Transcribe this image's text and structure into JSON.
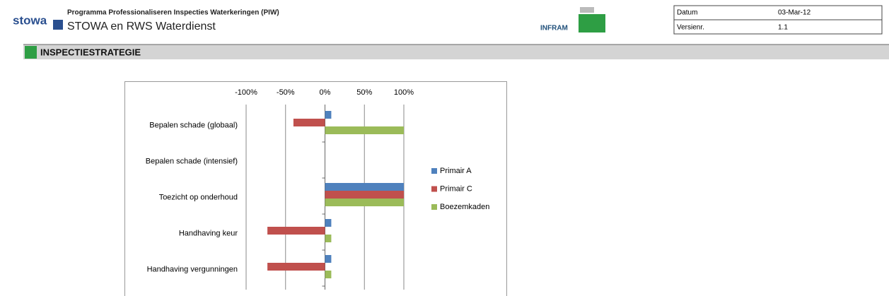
{
  "header": {
    "logo_text": "stowa",
    "program": "Programma Professionaliseren Inspecties Waterkeringen (PIW)",
    "subtitle": "STOWA en RWS Waterdienst",
    "partner_logo": "INFRAM",
    "meta": [
      [
        "Datum",
        "03-Mar-12"
      ],
      [
        "Versienr.",
        "1.1"
      ]
    ]
  },
  "section": {
    "title": "INSPECTIESTRATEGIE"
  },
  "chart_data": {
    "type": "bar",
    "orientation": "horizontal",
    "categories": [
      "Bepalen schade (globaal)",
      "Bepalen schade (intensief)",
      "Toezicht op onderhoud",
      "Handhaving keur",
      "Handhaving vergunningen"
    ],
    "series": [
      {
        "name": "Primair A",
        "color": "#4f81bd",
        "values": [
          8,
          null,
          100,
          8,
          8
        ]
      },
      {
        "name": "Primair C",
        "color": "#c0504d",
        "values": [
          -40,
          null,
          100,
          -73,
          -73
        ]
      },
      {
        "name": "Boezemkaden",
        "color": "#9bbb59",
        "values": [
          100,
          null,
          100,
          8,
          8
        ]
      }
    ],
    "xlim": [
      -100,
      100
    ],
    "xticks": [
      {
        "value": -100,
        "label": "-100%"
      },
      {
        "value": -50,
        "label": "-50%"
      },
      {
        "value": 0,
        "label": "0%"
      },
      {
        "value": 50,
        "label": "50%"
      },
      {
        "value": 100,
        "label": "100%"
      }
    ],
    "grid": true,
    "legend": "right"
  }
}
